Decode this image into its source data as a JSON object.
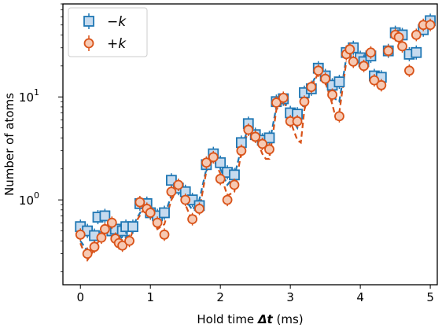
{
  "chart_data": {
    "type": "scatter",
    "xlabel": "Hold time Δt (ms)",
    "ylabel": "Number of atoms",
    "xlim": [
      -0.25,
      5.1
    ],
    "ylim": [
      0.15,
      80
    ],
    "yscale": "log",
    "x_ticks": [
      "0",
      "1",
      "2",
      "3",
      "4",
      "5"
    ],
    "y_ticks": [
      "10^0",
      "10^1"
    ],
    "y_tick_parts": [
      {
        "base": "10",
        "exp": "0"
      },
      {
        "base": "10",
        "exp": "1"
      }
    ],
    "legend": {
      "position": "top-left"
    },
    "series": [
      {
        "name": "−k",
        "marker": "square",
        "color": "#1f77b4",
        "fill": "#c6dbef",
        "x": [
          0.0,
          0.1,
          0.2,
          0.25,
          0.35,
          0.45,
          0.5,
          0.6,
          0.65,
          0.75,
          0.85,
          0.95,
          1.0,
          1.1,
          1.2,
          1.3,
          1.4,
          1.5,
          1.6,
          1.7,
          1.8,
          1.9,
          2.0,
          2.1,
          2.2,
          2.3,
          2.4,
          2.5,
          2.6,
          2.7,
          2.8,
          2.9,
          3.0,
          3.1,
          3.2,
          3.3,
          3.4,
          3.5,
          3.6,
          3.7,
          3.8,
          3.9,
          4.0,
          4.05,
          4.15,
          4.2,
          4.3,
          4.4,
          4.5,
          4.6,
          4.7,
          4.8,
          4.9,
          5.0
        ],
        "y": [
          0.55,
          0.5,
          0.45,
          0.68,
          0.7,
          0.5,
          0.52,
          0.5,
          0.55,
          0.55,
          0.92,
          0.92,
          0.75,
          0.7,
          0.75,
          1.55,
          1.3,
          1.2,
          1.0,
          0.88,
          2.2,
          2.8,
          2.3,
          1.85,
          1.75,
          3.6,
          5.5,
          4.3,
          3.8,
          4.0,
          9.0,
          9.6,
          7.0,
          6.8,
          11.0,
          12.0,
          19.0,
          16.0,
          13.0,
          14.0,
          27.0,
          30.0,
          24.0,
          22.0,
          25.0,
          16.0,
          15.5,
          28.0,
          42.0,
          40.0,
          26.0,
          27.0,
          45.0,
          55.0
        ]
      },
      {
        "name": "+k",
        "marker": "circle",
        "color": "#d95319",
        "fill": "#f6c9b3",
        "x": [
          0.0,
          0.1,
          0.2,
          0.3,
          0.35,
          0.45,
          0.5,
          0.55,
          0.6,
          0.7,
          0.85,
          0.95,
          1.0,
          1.1,
          1.2,
          1.3,
          1.4,
          1.5,
          1.6,
          1.7,
          1.8,
          1.9,
          2.0,
          2.1,
          2.2,
          2.3,
          2.4,
          2.5,
          2.6,
          2.7,
          2.8,
          2.9,
          3.0,
          3.1,
          3.2,
          3.3,
          3.4,
          3.5,
          3.6,
          3.7,
          3.8,
          3.85,
          3.9,
          4.05,
          4.15,
          4.2,
          4.3,
          4.4,
          4.5,
          4.55,
          4.6,
          4.7,
          4.8,
          4.9,
          5.0
        ],
        "y": [
          0.46,
          0.3,
          0.35,
          0.43,
          0.52,
          0.6,
          0.42,
          0.38,
          0.36,
          0.4,
          0.95,
          0.82,
          0.75,
          0.6,
          0.46,
          1.2,
          1.4,
          1.0,
          0.65,
          0.82,
          2.3,
          2.6,
          1.6,
          1.0,
          1.4,
          3.0,
          4.8,
          4.1,
          3.5,
          3.1,
          8.8,
          9.8,
          5.8,
          5.8,
          9.0,
          12.5,
          18.0,
          15.0,
          10.5,
          6.5,
          26.0,
          29.0,
          22.0,
          20.0,
          27.0,
          14.5,
          13.0,
          28.0,
          40.0,
          38.0,
          31.0,
          18.0,
          40.0,
          50.0,
          50.0
        ]
      }
    ],
    "fits": [
      {
        "color": "#1f77b4",
        "x": [
          0.0,
          0.1,
          0.2,
          0.3,
          0.4,
          0.5,
          0.6,
          0.7,
          0.8,
          0.9,
          1.0,
          1.1,
          1.2,
          1.3,
          1.4,
          1.5,
          1.6,
          1.7,
          1.8,
          1.9,
          2.0,
          2.1,
          2.2,
          2.3,
          2.4,
          2.5,
          2.6,
          2.7,
          2.8,
          2.9,
          3.0,
          3.1,
          3.2,
          3.3,
          3.4,
          3.5,
          3.6,
          3.7,
          3.8
        ],
        "y": [
          0.4,
          0.32,
          0.38,
          0.5,
          0.58,
          0.5,
          0.42,
          0.45,
          0.65,
          0.85,
          0.78,
          0.6,
          0.7,
          1.1,
          1.35,
          1.0,
          0.8,
          1.0,
          2.0,
          2.6,
          2.0,
          1.4,
          1.7,
          3.2,
          5.0,
          4.3,
          3.2,
          3.5,
          8.0,
          9.8,
          6.5,
          5.0,
          9.0,
          13.0,
          18.0,
          15.0,
          10.0,
          9.0,
          24.0
        ]
      },
      {
        "color": "#d95319",
        "x": [
          0.0,
          0.1,
          0.2,
          0.3,
          0.4,
          0.5,
          0.6,
          0.7,
          0.8,
          0.9,
          1.0,
          1.1,
          1.2,
          1.3,
          1.4,
          1.5,
          1.6,
          1.7,
          1.8,
          1.9,
          2.0,
          2.1,
          2.2,
          2.3,
          2.4,
          2.5,
          2.6,
          2.65,
          2.7,
          2.8,
          2.9,
          3.0,
          3.1,
          3.15,
          3.2,
          3.3,
          3.4,
          3.5,
          3.6,
          3.65,
          3.7,
          3.8
        ],
        "y": [
          0.38,
          0.26,
          0.33,
          0.45,
          0.55,
          0.45,
          0.36,
          0.4,
          0.62,
          0.8,
          0.72,
          0.52,
          0.58,
          1.0,
          1.3,
          0.9,
          0.62,
          0.8,
          1.9,
          2.5,
          1.8,
          1.1,
          1.2,
          2.9,
          4.7,
          4.1,
          2.8,
          2.5,
          2.5,
          7.5,
          9.5,
          5.8,
          3.8,
          3.6,
          7.5,
          12.5,
          17.0,
          14.0,
          8.5,
          6.2,
          7.0,
          22.0
        ]
      }
    ]
  }
}
